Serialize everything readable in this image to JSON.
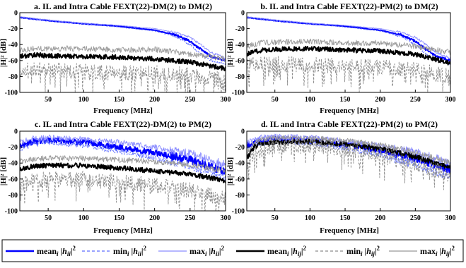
{
  "chart_data": [
    {
      "type": "line",
      "title": "a. IL and Intra Cable FEXT(22)-DM(2) to DM(2)",
      "xlabel": "Frequency [MHz]",
      "ylabel": "|H|² [dB]",
      "xlim": [
        10,
        300
      ],
      "ylim": [
        -100,
        0
      ],
      "xticks": [
        "50",
        "100",
        "150",
        "200",
        "250",
        "300"
      ],
      "yticks": [
        "0",
        "-20",
        "-40",
        "-60",
        "-80",
        "-100"
      ],
      "grid": false,
      "series": [
        {
          "name": "mean_i |h_ii|^2",
          "color": "#0000ff",
          "style": "solid-thick",
          "x": [
            10,
            50,
            100,
            150,
            200,
            230,
            250,
            265,
            280,
            300
          ],
          "y": [
            -6,
            -10,
            -14,
            -17,
            -22,
            -28,
            -36,
            -46,
            -55,
            -60
          ]
        },
        {
          "name": "min_i |h_ii|^2",
          "color": "#5c6cff",
          "style": "dashed",
          "x": [
            10,
            50,
            100,
            150,
            200,
            230,
            250,
            265,
            280,
            300
          ],
          "y": [
            -6,
            -10,
            -14,
            -18,
            -23,
            -30,
            -40,
            -52,
            -60,
            -65
          ]
        },
        {
          "name": "max_i |h_ii|^2",
          "color": "#8a8cff",
          "style": "solid-thin",
          "x": [
            10,
            50,
            100,
            150,
            200,
            230,
            250,
            265,
            280,
            300
          ],
          "y": [
            -5,
            -9,
            -13,
            -16,
            -20,
            -25,
            -31,
            -40,
            -50,
            -57
          ]
        },
        {
          "name": "mean_i |h_ij|^2",
          "color": "#000000",
          "style": "solid-thick",
          "x": [
            10,
            30,
            50,
            100,
            150,
            200,
            250,
            300
          ],
          "y": [
            -55,
            -53,
            -54,
            -55,
            -56,
            -58,
            -62,
            -70
          ]
        },
        {
          "name": "min_i |h_ij|^2",
          "color": "#8c8c8c",
          "style": "dashed",
          "x": [
            10,
            30,
            50,
            100,
            150,
            200,
            250,
            300
          ],
          "y": [
            -72,
            -70,
            -72,
            -74,
            -76,
            -76,
            -78,
            -85
          ]
        },
        {
          "name": "max_i |h_ij|^2",
          "color": "#999999",
          "style": "solid-thin",
          "x": [
            10,
            30,
            50,
            100,
            150,
            200,
            250,
            300
          ],
          "y": [
            -47,
            -45,
            -45,
            -45,
            -47,
            -46,
            -52,
            -58
          ]
        }
      ]
    },
    {
      "type": "line",
      "title": "b. IL and Intra Cable FEXT(22)-PM(2) to DM(2)",
      "xlabel": "Frequency [MHz]",
      "ylabel": "|H|² [dB]",
      "xlim": [
        10,
        300
      ],
      "ylim": [
        -100,
        0
      ],
      "xticks": [
        "50",
        "100",
        "150",
        "200",
        "250",
        "300"
      ],
      "yticks": [
        "0",
        "-20",
        "-40",
        "-60",
        "-80",
        "-100"
      ],
      "grid": false,
      "series": [
        {
          "name": "mean_i |h_ii|^2",
          "color": "#0000ff",
          "style": "solid-thick",
          "x": [
            10,
            50,
            100,
            150,
            200,
            230,
            250,
            265,
            280,
            300
          ],
          "y": [
            -6,
            -10,
            -14,
            -17,
            -22,
            -28,
            -36,
            -46,
            -55,
            -60
          ]
        },
        {
          "name": "min_i |h_ii|^2",
          "color": "#5c6cff",
          "style": "dashed",
          "x": [
            10,
            50,
            100,
            150,
            200,
            230,
            250,
            265,
            280,
            300
          ],
          "y": [
            -6,
            -10,
            -14,
            -18,
            -23,
            -30,
            -40,
            -52,
            -60,
            -65
          ]
        },
        {
          "name": "max_i |h_ii|^2",
          "color": "#8a8cff",
          "style": "solid-thin",
          "x": [
            10,
            50,
            100,
            150,
            200,
            230,
            250,
            265,
            280,
            300
          ],
          "y": [
            -5,
            -9,
            -13,
            -16,
            -20,
            -25,
            -31,
            -40,
            -50,
            -57
          ]
        },
        {
          "name": "mean_i |h_ij|^2",
          "color": "#000000",
          "style": "solid-thick",
          "x": [
            10,
            30,
            50,
            100,
            150,
            200,
            250,
            300
          ],
          "y": [
            -52,
            -47,
            -46,
            -45,
            -47,
            -48,
            -52,
            -63
          ]
        },
        {
          "name": "min_i |h_ij|^2",
          "color": "#8c8c8c",
          "style": "dashed",
          "x": [
            10,
            30,
            50,
            100,
            150,
            200,
            250,
            300
          ],
          "y": [
            -66,
            -63,
            -64,
            -66,
            -67,
            -68,
            -72,
            -80
          ]
        },
        {
          "name": "max_i |h_ij|^2",
          "color": "#999999",
          "style": "solid-thin",
          "x": [
            10,
            30,
            50,
            100,
            150,
            200,
            250,
            300
          ],
          "y": [
            -42,
            -38,
            -37,
            -36,
            -38,
            -38,
            -42,
            -50
          ]
        }
      ]
    },
    {
      "type": "line",
      "title": "c. IL and Intra Cable FEXT(22)-DM(2) to PM(2)",
      "xlabel": "Frequency [MHz]",
      "ylabel": "|H|² [dB]",
      "xlim": [
        10,
        300
      ],
      "ylim": [
        -100,
        0
      ],
      "xticks": [
        "50",
        "100",
        "150",
        "200",
        "250",
        "300"
      ],
      "yticks": [
        "0",
        "-20",
        "-40",
        "-60",
        "-80",
        "-100"
      ],
      "grid": false,
      "series": [
        {
          "name": "mean_i |h_ii|^2",
          "color": "#0000ff",
          "style": "solid-thick",
          "x": [
            10,
            30,
            50,
            100,
            150,
            200,
            250,
            300
          ],
          "y": [
            -18,
            -13,
            -11,
            -14,
            -20,
            -27,
            -36,
            -50
          ]
        },
        {
          "name": "min_i |h_ii|^2",
          "color": "#5c6cff",
          "style": "dashed",
          "x": [
            10,
            30,
            50,
            100,
            150,
            200,
            250,
            300
          ],
          "y": [
            -22,
            -16,
            -14,
            -18,
            -25,
            -34,
            -44,
            -58
          ]
        },
        {
          "name": "max_i |h_ii|^2",
          "color": "#8a8cff",
          "style": "solid-thin",
          "x": [
            10,
            30,
            50,
            100,
            150,
            200,
            250,
            300
          ],
          "y": [
            -14,
            -9,
            -8,
            -10,
            -14,
            -20,
            -28,
            -42
          ]
        },
        {
          "name": "mean_i |h_ij|^2",
          "color": "#000000",
          "style": "solid-thick",
          "x": [
            10,
            30,
            50,
            100,
            150,
            200,
            250,
            300
          ],
          "y": [
            -48,
            -44,
            -43,
            -43,
            -46,
            -50,
            -54,
            -62
          ]
        },
        {
          "name": "min_i |h_ij|^2",
          "color": "#8c8c8c",
          "style": "dashed",
          "x": [
            10,
            30,
            50,
            100,
            150,
            200,
            250,
            300
          ],
          "y": [
            -66,
            -62,
            -60,
            -60,
            -64,
            -68,
            -74,
            -84
          ]
        },
        {
          "name": "max_i |h_ij|^2",
          "color": "#999999",
          "style": "solid-thin",
          "x": [
            10,
            30,
            50,
            100,
            150,
            200,
            250,
            300
          ],
          "y": [
            -38,
            -35,
            -34,
            -34,
            -36,
            -38,
            -42,
            -50
          ]
        }
      ]
    },
    {
      "type": "line",
      "title": "d. IL and Intra Cable FEXT(22)-PM(2) to PM(2)",
      "xlabel": "Frequency [MHz]",
      "ylabel": "|H|² [dB]",
      "xlim": [
        10,
        300
      ],
      "ylim": [
        -100,
        0
      ],
      "xticks": [
        "50",
        "100",
        "150",
        "200",
        "250",
        "300"
      ],
      "yticks": [
        "0",
        "-20",
        "-40",
        "-60",
        "-80",
        "-100"
      ],
      "grid": false,
      "series": [
        {
          "name": "mean_i |h_ii|^2",
          "color": "#0000ff",
          "style": "solid-thick",
          "x": [
            10,
            30,
            50,
            100,
            150,
            200,
            250,
            300
          ],
          "y": [
            -18,
            -12,
            -10,
            -12,
            -17,
            -24,
            -34,
            -48
          ]
        },
        {
          "name": "min_i |h_ii|^2",
          "color": "#5c6cff",
          "style": "dashed",
          "x": [
            10,
            30,
            50,
            100,
            150,
            200,
            250,
            300
          ],
          "y": [
            -22,
            -15,
            -13,
            -15,
            -21,
            -30,
            -42,
            -58
          ]
        },
        {
          "name": "max_i |h_ii|^2",
          "color": "#8a8cff",
          "style": "solid-thin",
          "x": [
            10,
            30,
            50,
            100,
            150,
            200,
            250,
            300
          ],
          "y": [
            -14,
            -8,
            -7,
            -8,
            -12,
            -18,
            -26,
            -40
          ]
        },
        {
          "name": "mean_i |h_ij|^2",
          "color": "#000000",
          "style": "solid-thick",
          "x": [
            10,
            20,
            30,
            50,
            100,
            150,
            200,
            250,
            300
          ],
          "y": [
            -35,
            -20,
            -16,
            -14,
            -13,
            -16,
            -22,
            -32,
            -46
          ]
        },
        {
          "name": "min_i |h_ij|^2",
          "color": "#8c8c8c",
          "style": "dashed",
          "x": [
            10,
            20,
            30,
            50,
            100,
            150,
            200,
            250,
            300
          ],
          "y": [
            -45,
            -30,
            -24,
            -20,
            -18,
            -22,
            -28,
            -40,
            -55
          ]
        },
        {
          "name": "max_i |h_ij|^2",
          "color": "#999999",
          "style": "solid-thin",
          "x": [
            10,
            20,
            30,
            50,
            100,
            150,
            200,
            250,
            300
          ],
          "y": [
            -28,
            -14,
            -10,
            -9,
            -9,
            -12,
            -17,
            -26,
            -40
          ]
        }
      ]
    }
  ],
  "legend": {
    "placement": "bottom",
    "entries": [
      {
        "prefix": "mean",
        "sub": "ii",
        "color": "#0000ff",
        "style": "solid-thick"
      },
      {
        "prefix": "min",
        "sub": "ii",
        "color": "#5c6cff",
        "style": "dashed"
      },
      {
        "prefix": "max",
        "sub": "ii",
        "color": "#8a8cff",
        "style": "solid-thin"
      },
      {
        "prefix": "mean",
        "sub": "ij",
        "color": "#000000",
        "style": "solid-thick"
      },
      {
        "prefix": "min",
        "sub": "ij",
        "color": "#8c8c8c",
        "style": "dashed"
      },
      {
        "prefix": "max",
        "sub": "ij",
        "color": "#999999",
        "style": "solid-thin"
      }
    ]
  }
}
